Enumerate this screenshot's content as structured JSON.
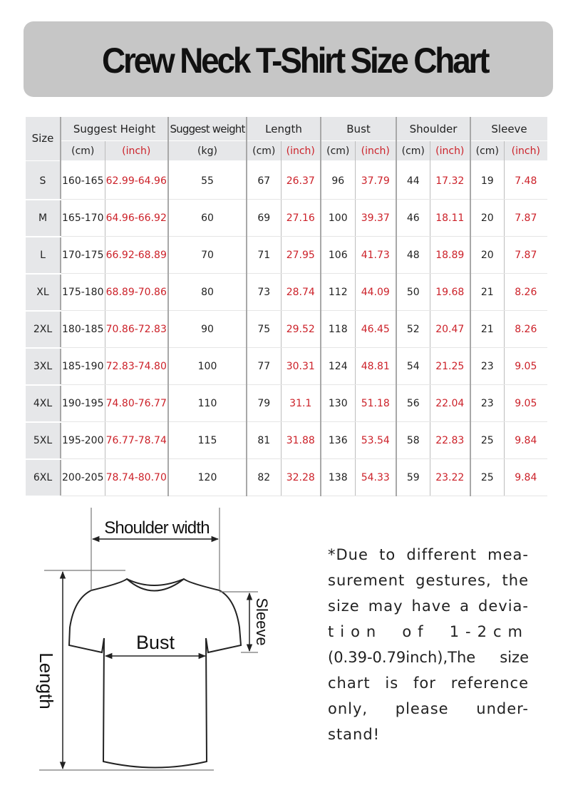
{
  "title": "Crew Neck T-Shirt Size Chart",
  "table": {
    "size_header": "Size",
    "groups": [
      "Suggest Height",
      "Suggest weight",
      "Length",
      "Bust",
      "Shoulder",
      "Sleeve"
    ],
    "units": [
      "(cm)",
      "(inch)",
      "(kg)",
      "(cm)",
      "(inch)",
      "(cm)",
      "(inch)",
      "(cm)",
      "(inch)",
      "(cm)",
      "(inch)"
    ],
    "rows": [
      [
        "S",
        "160-165",
        "62.99-64.96",
        "55",
        "67",
        "26.37",
        "96",
        "37.79",
        "44",
        "17.32",
        "19",
        "7.48"
      ],
      [
        "M",
        "165-170",
        "64.96-66.92",
        "60",
        "69",
        "27.16",
        "100",
        "39.37",
        "46",
        "18.11",
        "20",
        "7.87"
      ],
      [
        "L",
        "170-175",
        "66.92-68.89",
        "70",
        "71",
        "27.95",
        "106",
        "41.73",
        "48",
        "18.89",
        "20",
        "7.87"
      ],
      [
        "XL",
        "175-180",
        "68.89-70.86",
        "80",
        "73",
        "28.74",
        "112",
        "44.09",
        "50",
        "19.68",
        "21",
        "8.26"
      ],
      [
        "2XL",
        "180-185",
        "70.86-72.83",
        "90",
        "75",
        "29.52",
        "118",
        "46.45",
        "52",
        "20.47",
        "21",
        "8.26"
      ],
      [
        "3XL",
        "185-190",
        "72.83-74.80",
        "100",
        "77",
        "30.31",
        "124",
        "48.81",
        "54",
        "21.25",
        "23",
        "9.05"
      ],
      [
        "4XL",
        "190-195",
        "74.80-76.77",
        "110",
        "79",
        "31.1",
        "130",
        "51.18",
        "56",
        "22.04",
        "23",
        "9.05"
      ],
      [
        "5XL",
        "195-200",
        "76.77-78.74",
        "115",
        "81",
        "31.88",
        "136",
        "53.54",
        "58",
        "22.83",
        "25",
        "9.84"
      ],
      [
        "6XL",
        "200-205",
        "78.74-80.70",
        "120",
        "82",
        "32.28",
        "138",
        "54.33",
        "59",
        "23.22",
        "25",
        "9.84"
      ]
    ]
  },
  "diagram": {
    "shoulder_label": "Shoulder width",
    "bust_label": "Bust",
    "sleeve_label": "Sleeve",
    "length_label": "Length"
  },
  "note_lines": [
    "*Due to different mea-",
    "surement gestures, the",
    "size may have a devia-",
    "tion of 1-2cm",
    "(0.39-0.79inch),The size",
    "chart is for reference",
    "only, please under-",
    "stand!"
  ],
  "colors": {
    "banner": "#c6c6c6",
    "header_bg": "#e6e7e9",
    "inch_red": "#cc2129"
  }
}
